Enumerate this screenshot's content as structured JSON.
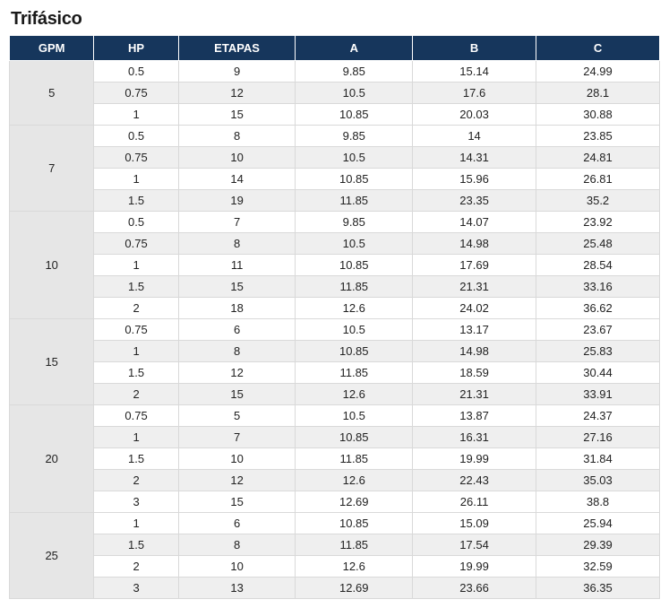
{
  "title": "Trifásico",
  "colors": {
    "header_bg": "#16365c",
    "header_text": "#ffffff",
    "gpm_bg": "#e6e6e6",
    "row_light": "#ffffff",
    "row_shade": "#efefef",
    "border": "#d9d9d9",
    "title_color": "#1a1a1a"
  },
  "typography": {
    "title_fontsize_pt": 15,
    "title_weight": "700",
    "header_fontsize_pt": 10,
    "cell_fontsize_pt": 10
  },
  "table": {
    "type": "table",
    "columns": [
      "GPM",
      "HP",
      "ETAPAS",
      "A",
      "B",
      "C"
    ],
    "column_widths_pct": [
      13,
      13,
      18,
      18,
      19,
      19
    ],
    "column_align": [
      "center",
      "center",
      "center",
      "center",
      "center",
      "center"
    ],
    "groups": [
      {
        "gpm": "5",
        "rows": [
          {
            "hp": "0.5",
            "etapas": "9",
            "a": "9.85",
            "b": "15.14",
            "c": "24.99"
          },
          {
            "hp": "0.75",
            "etapas": "12",
            "a": "10.5",
            "b": "17.6",
            "c": "28.1"
          },
          {
            "hp": "1",
            "etapas": "15",
            "a": "10.85",
            "b": "20.03",
            "c": "30.88"
          }
        ]
      },
      {
        "gpm": "7",
        "rows": [
          {
            "hp": "0.5",
            "etapas": "8",
            "a": "9.85",
            "b": "14",
            "c": "23.85"
          },
          {
            "hp": "0.75",
            "etapas": "10",
            "a": "10.5",
            "b": "14.31",
            "c": "24.81"
          },
          {
            "hp": "1",
            "etapas": "14",
            "a": "10.85",
            "b": "15.96",
            "c": "26.81"
          },
          {
            "hp": "1.5",
            "etapas": "19",
            "a": "11.85",
            "b": "23.35",
            "c": "35.2"
          }
        ]
      },
      {
        "gpm": "10",
        "rows": [
          {
            "hp": "0.5",
            "etapas": "7",
            "a": "9.85",
            "b": "14.07",
            "c": "23.92"
          },
          {
            "hp": "0.75",
            "etapas": "8",
            "a": "10.5",
            "b": "14.98",
            "c": "25.48"
          },
          {
            "hp": "1",
            "etapas": "11",
            "a": "10.85",
            "b": "17.69",
            "c": "28.54"
          },
          {
            "hp": "1.5",
            "etapas": "15",
            "a": "11.85",
            "b": "21.31",
            "c": "33.16"
          },
          {
            "hp": "2",
            "etapas": "18",
            "a": "12.6",
            "b": "24.02",
            "c": "36.62"
          }
        ]
      },
      {
        "gpm": "15",
        "rows": [
          {
            "hp": "0.75",
            "etapas": "6",
            "a": "10.5",
            "b": "13.17",
            "c": "23.67"
          },
          {
            "hp": "1",
            "etapas": "8",
            "a": "10.85",
            "b": "14.98",
            "c": "25.83"
          },
          {
            "hp": "1.5",
            "etapas": "12",
            "a": "11.85",
            "b": "18.59",
            "c": "30.44"
          },
          {
            "hp": "2",
            "etapas": "15",
            "a": "12.6",
            "b": "21.31",
            "c": "33.91"
          }
        ]
      },
      {
        "gpm": "20",
        "rows": [
          {
            "hp": "0.75",
            "etapas": "5",
            "a": "10.5",
            "b": "13.87",
            "c": "24.37"
          },
          {
            "hp": "1",
            "etapas": "7",
            "a": "10.85",
            "b": "16.31",
            "c": "27.16"
          },
          {
            "hp": "1.5",
            "etapas": "10",
            "a": "11.85",
            "b": "19.99",
            "c": "31.84"
          },
          {
            "hp": "2",
            "etapas": "12",
            "a": "12.6",
            "b": "22.43",
            "c": "35.03"
          },
          {
            "hp": "3",
            "etapas": "15",
            "a": "12.69",
            "b": "26.11",
            "c": "38.8"
          }
        ]
      },
      {
        "gpm": "25",
        "rows": [
          {
            "hp": "1",
            "etapas": "6",
            "a": "10.85",
            "b": "15.09",
            "c": "25.94"
          },
          {
            "hp": "1.5",
            "etapas": "8",
            "a": "11.85",
            "b": "17.54",
            "c": "29.39"
          },
          {
            "hp": "2",
            "etapas": "10",
            "a": "12.6",
            "b": "19.99",
            "c": "32.59"
          },
          {
            "hp": "3",
            "etapas": "13",
            "a": "12.69",
            "b": "23.66",
            "c": "36.35"
          }
        ]
      }
    ]
  }
}
